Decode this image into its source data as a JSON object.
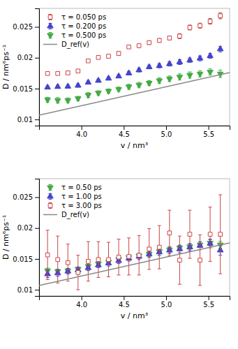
{
  "chart_data": [
    {
      "type": "scatter",
      "xlabel": "v / nm³",
      "ylabel": "D / nm⁶ps⁻¹",
      "xlim": [
        3.5,
        5.75
      ],
      "ylim": [
        0.009,
        0.028
      ],
      "xticks": [
        {
          "value": 4.0,
          "label": "4.0"
        },
        {
          "value": 4.5,
          "label": "4.5"
        },
        {
          "value": 5.0,
          "label": "5.0"
        },
        {
          "value": 5.5,
          "label": "5.5"
        }
      ],
      "yticks": [
        0.01,
        0.015,
        0.02,
        0.025
      ],
      "grid": false,
      "legend": "upper left",
      "series": [
        {
          "name": "τ = 0.050 ps",
          "type": "scatter",
          "color": "#cc4444",
          "marker": "square-open",
          "x": [
            3.6,
            3.72,
            3.84,
            3.96,
            4.08,
            4.2,
            4.32,
            4.44,
            4.56,
            4.68,
            4.8,
            4.92,
            5.04,
            5.16,
            5.28,
            5.4,
            5.52,
            5.64
          ],
          "values": [
            0.01745,
            0.01745,
            0.01755,
            0.01785,
            0.0195,
            0.02005,
            0.02025,
            0.0207,
            0.02175,
            0.02195,
            0.02245,
            0.0228,
            0.0232,
            0.0235,
            0.0249,
            0.0252,
            0.0259,
            0.0268
          ],
          "errors": [
            0.00025,
            0.0002,
            0.00025,
            0.00025,
            0.0002,
            0.00025,
            0.00025,
            0.0003,
            0.00025,
            0.00025,
            0.0003,
            0.0003,
            0.0003,
            0.0004,
            0.0004,
            0.0004,
            0.00045,
            0.0005
          ]
        },
        {
          "name": "τ = 0.200 ps",
          "type": "scatter",
          "color": "#4444cc",
          "marker": "triangle-up",
          "x": [
            3.6,
            3.72,
            3.84,
            3.96,
            4.08,
            4.2,
            4.32,
            4.44,
            4.56,
            4.68,
            4.8,
            4.92,
            5.04,
            5.16,
            5.28,
            5.4,
            5.52,
            5.64
          ],
          "values": [
            0.0152,
            0.0153,
            0.01535,
            0.0155,
            0.016,
            0.0163,
            0.01665,
            0.017,
            0.0175,
            0.018,
            0.0185,
            0.0187,
            0.019,
            0.0193,
            0.0196,
            0.0199,
            0.0203,
            0.0214
          ],
          "errors": [
            0.00025,
            0.00025,
            0.00025,
            0.00025,
            0.00025,
            0.00025,
            0.00025,
            0.00025,
            0.0003,
            0.0003,
            0.0003,
            0.00035,
            0.00035,
            0.0004,
            0.00035,
            0.0004,
            0.0004,
            0.00045
          ]
        },
        {
          "name": "τ = 0.500 ps",
          "type": "scatter",
          "color": "#44aa44",
          "marker": "triangle-down",
          "x": [
            3.6,
            3.72,
            3.84,
            3.96,
            4.08,
            4.2,
            4.32,
            4.44,
            4.56,
            4.68,
            4.8,
            4.92,
            5.04,
            5.16,
            5.28,
            5.4,
            5.52,
            5.64
          ],
          "values": [
            0.0132,
            0.0131,
            0.0131,
            0.0134,
            0.01395,
            0.0143,
            0.0146,
            0.0149,
            0.0153,
            0.0156,
            0.0159,
            0.0163,
            0.0166,
            0.0169,
            0.0172,
            0.0174,
            0.0177,
            0.0174
          ],
          "errors": [
            0.0004,
            0.00045,
            0.0004,
            0.00035,
            0.0004,
            0.00035,
            0.00035,
            0.00035,
            0.0004,
            0.0004,
            0.0004,
            0.00045,
            0.00045,
            0.0005,
            0.0005,
            0.0005,
            0.0005,
            0.0006
          ]
        },
        {
          "name": "D_ref(v)",
          "type": "line",
          "color": "#888888",
          "line_style": "solid",
          "x": [
            3.5,
            5.75
          ],
          "values": [
            0.0107,
            0.0176
          ]
        }
      ]
    },
    {
      "type": "scatter",
      "xlabel": "v / nm³",
      "ylabel": "D / nm⁶ps⁻¹",
      "xlim": [
        3.5,
        5.75
      ],
      "ylim": [
        0.009,
        0.028
      ],
      "xticks": [
        {
          "value": 4.0,
          "label": "4.0"
        },
        {
          "value": 4.5,
          "label": "4.5"
        },
        {
          "value": 5.0,
          "label": "5.0"
        },
        {
          "value": 5.5,
          "label": "5.5"
        }
      ],
      "yticks": [
        0.01,
        0.015,
        0.02,
        0.025
      ],
      "grid": false,
      "legend": "upper left",
      "series": [
        {
          "name": "τ = 0.50 ps",
          "type": "scatter",
          "color": "#44aa44",
          "marker": "triangle-down",
          "x": [
            3.6,
            3.72,
            3.84,
            3.96,
            4.08,
            4.2,
            4.32,
            4.44,
            4.56,
            4.68,
            4.8,
            4.92,
            5.04,
            5.16,
            5.28,
            5.4,
            5.52,
            5.64
          ],
          "values": [
            0.0131,
            0.013,
            0.0131,
            0.01335,
            0.0138,
            0.0142,
            0.0145,
            0.0149,
            0.01525,
            0.0155,
            0.0158,
            0.0162,
            0.0165,
            0.0168,
            0.017,
            0.0173,
            0.0176,
            0.0173
          ],
          "errors": [
            0.0004,
            0.00035,
            0.00035,
            0.00035,
            0.00035,
            0.00035,
            0.00035,
            0.0003,
            0.00035,
            0.00035,
            0.00035,
            0.0004,
            0.0004,
            0.00045,
            0.00045,
            0.00045,
            0.0005,
            0.00055
          ]
        },
        {
          "name": "τ = 1.00 ps",
          "type": "scatter",
          "color": "#4444cc",
          "marker": "triangle-up",
          "x": [
            3.6,
            3.72,
            3.84,
            3.96,
            4.08,
            4.2,
            4.32,
            4.44,
            4.56,
            4.68,
            4.8,
            4.92,
            5.04,
            5.16,
            5.28,
            5.4,
            5.52,
            5.64
          ],
          "values": [
            0.01255,
            0.0127,
            0.013,
            0.0132,
            0.01355,
            0.014,
            0.0143,
            0.0147,
            0.0151,
            0.0154,
            0.01575,
            0.0161,
            0.0164,
            0.0166,
            0.0169,
            0.01715,
            0.0175,
            0.0164
          ],
          "errors": [
            0.00055,
            0.0005,
            0.00045,
            0.00045,
            0.00045,
            0.0004,
            0.00045,
            0.00045,
            0.00045,
            0.0005,
            0.0005,
            0.00055,
            0.00055,
            0.0006,
            0.0006,
            0.00065,
            0.0007,
            0.0008
          ]
        },
        {
          "name": "τ = 3.00 ps",
          "type": "scatter",
          "color": "#cc4444",
          "marker": "square-open",
          "x": [
            3.6,
            3.72,
            3.84,
            3.96,
            4.08,
            4.2,
            4.32,
            4.44,
            4.56,
            4.68,
            4.8,
            4.92,
            5.04,
            5.16,
            5.28,
            5.4,
            5.52,
            5.64
          ],
          "values": [
            0.01565,
            0.0149,
            0.0144,
            0.0128,
            0.0146,
            0.0149,
            0.0149,
            0.0153,
            0.0154,
            0.0156,
            0.0166,
            0.0169,
            0.0192,
            0.0148,
            0.019,
            0.0148,
            0.019,
            0.019
          ],
          "errors": [
            0.004,
            0.0038,
            0.003,
            0.0028,
            0.0032,
            0.0029,
            0.0028,
            0.0029,
            0.003,
            0.0032,
            0.0033,
            0.0035,
            0.0037,
            0.0039,
            0.0039,
            0.0041,
            0.0044,
            0.0064
          ]
        },
        {
          "name": "D_ref(v)",
          "type": "line",
          "color": "#888888",
          "line_style": "solid",
          "x": [
            3.5,
            5.75
          ],
          "values": [
            0.0107,
            0.0176
          ]
        }
      ]
    }
  ]
}
